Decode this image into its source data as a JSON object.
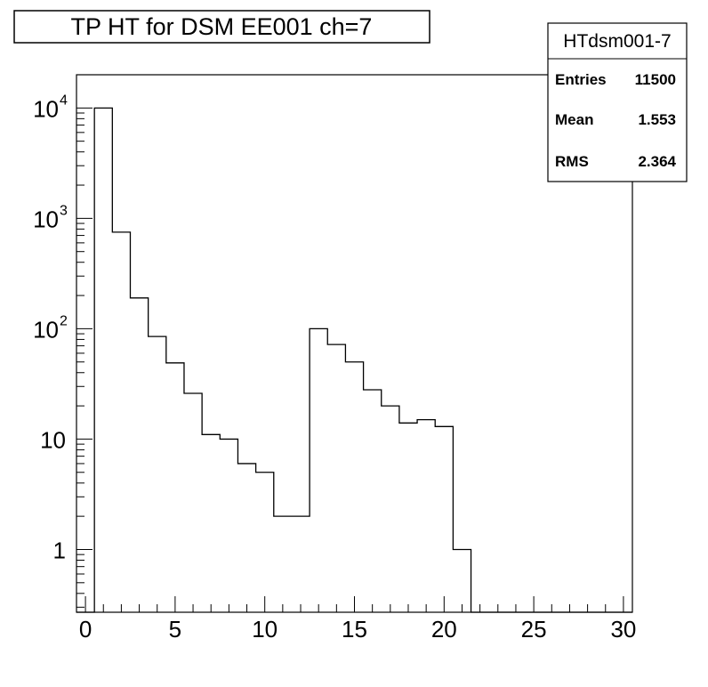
{
  "chart_data": {
    "type": "bar",
    "style": "step-histogram",
    "title": "TP HT for DSM EE001 ch=7",
    "xlabel": "",
    "ylabel": "",
    "xlim": [
      -0.5,
      30.5
    ],
    "ylim": [
      0.27,
      20000
    ],
    "y_scale": "log",
    "grid": false,
    "x_ticks": [
      0,
      5,
      10,
      15,
      20,
      25,
      30
    ],
    "y_ticks": [
      {
        "value": 1,
        "label": "1",
        "exp": ""
      },
      {
        "value": 10,
        "label": "10",
        "exp": ""
      },
      {
        "value": 100,
        "label": "10",
        "exp": "2"
      },
      {
        "value": 1000,
        "label": "10",
        "exp": "3"
      },
      {
        "value": 10000,
        "label": "10",
        "exp": "4"
      }
    ],
    "bins": {
      "low_edges": [
        -0.5,
        0.5,
        1.5,
        2.5,
        3.5,
        4.5,
        5.5,
        6.5,
        7.5,
        8.5,
        9.5,
        10.5,
        11.5,
        12.5,
        13.5,
        14.5,
        15.5,
        16.5,
        17.5,
        18.5,
        19.5,
        20.5,
        21.5,
        22.5,
        23.5,
        24.5,
        25.5,
        26.5,
        27.5,
        28.5,
        29.5
      ],
      "width": 1,
      "values": [
        0,
        10000,
        750,
        190,
        85,
        49,
        26,
        11,
        10,
        6,
        5,
        2,
        2,
        100,
        72,
        50,
        28,
        20,
        14,
        15,
        13,
        1,
        0,
        0,
        0,
        0,
        0,
        0,
        0,
        0,
        0
      ]
    },
    "stats_box": {
      "name": "HTdsm001-7",
      "rows": [
        {
          "label": "Entries",
          "value": "11500"
        },
        {
          "label": "Mean",
          "value": "1.553"
        },
        {
          "label": "RMS",
          "value": "2.364"
        }
      ],
      "position": "top-right"
    }
  }
}
